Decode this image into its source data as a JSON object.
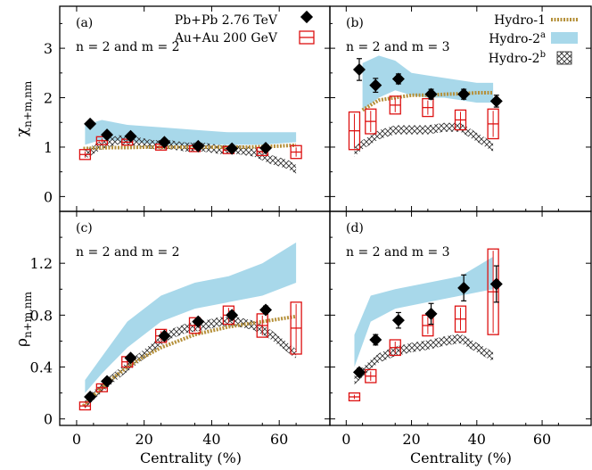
{
  "xlabel": "Centrality (%)",
  "legend": {
    "pbpb": "Pb+Pb 2.76 TeV",
    "auau": "Au+Au 200  GeV",
    "hydro1": "Hydro-1",
    "hydro2a_base": "Hydro-2",
    "hydro2a_sup": "a",
    "hydro2b_base": "Hydro-2",
    "hydro2b_sup": "b"
  },
  "row_labels": {
    "chi_base": "χ",
    "chi_sub": "n+m,nm",
    "rho_base": "ρ",
    "rho_sub": "n+m,nm"
  },
  "colors": {
    "pbpb": "#000000",
    "auau": "#dd1111",
    "hydro1": "#b5903a",
    "hydro2a": "#a8d8ea",
    "hydro2b": "#333333"
  },
  "chart_data": [
    {
      "type": "scatter",
      "panel": "a",
      "label": "(a)",
      "note": "n = 2 and m = 2",
      "xlim": [
        -5,
        75
      ],
      "ylim": [
        -0.3,
        3.85
      ],
      "xticks": [
        0,
        20,
        40,
        60
      ],
      "yticks": [
        0,
        1,
        2,
        3
      ],
      "xticklabels": [
        "",
        "",
        "",
        ""
      ],
      "yticklabels": [
        "0",
        "1",
        "2",
        "3"
      ],
      "pbpb": {
        "x": [
          4,
          9,
          16,
          26,
          36,
          46,
          56
        ],
        "y": [
          1.47,
          1.25,
          1.22,
          1.1,
          1.02,
          0.97,
          0.98
        ],
        "err": [
          0.04,
          0.04,
          0.04,
          0.04,
          0.04,
          0.05,
          0.06
        ]
      },
      "auau": {
        "x": [
          2.5,
          7.5,
          15,
          25,
          35,
          45,
          55,
          65
        ],
        "y": [
          0.85,
          1.13,
          1.1,
          1.0,
          0.97,
          0.94,
          0.91,
          0.9
        ],
        "box": [
          0.1,
          0.08,
          0.06,
          0.06,
          0.06,
          0.07,
          0.08,
          0.13
        ]
      },
      "hydro1": {
        "x": [
          2,
          5,
          10,
          15,
          20,
          25,
          30,
          35,
          40,
          45,
          50,
          55,
          60,
          65
        ],
        "y": [
          0.97,
          0.98,
          0.99,
          0.99,
          1.0,
          1.0,
          1.0,
          1.0,
          1.0,
          1.0,
          1.0,
          1.01,
          1.02,
          1.04
        ]
      },
      "hydro2a": {
        "x": [
          2.5,
          7.5,
          15,
          25,
          35,
          45,
          55,
          65
        ],
        "lo": [
          1.05,
          1.15,
          1.12,
          1.05,
          1.05,
          1.05,
          1.05,
          1.1
        ],
        "hi": [
          1.45,
          1.55,
          1.45,
          1.4,
          1.35,
          1.3,
          1.3,
          1.3
        ]
      },
      "hydro2b": {
        "x": [
          2.5,
          7.5,
          12.5,
          17.5,
          22.5,
          27.5,
          32.5,
          37.5,
          42.5,
          47.5,
          52.5,
          57.5,
          62.5,
          65
        ],
        "y": [
          0.85,
          1.05,
          1.15,
          1.12,
          1.05,
          1.05,
          1.0,
          1.0,
          0.95,
          0.95,
          0.9,
          0.75,
          0.65,
          0.55
        ]
      }
    },
    {
      "type": "scatter",
      "panel": "b",
      "label": "(b)",
      "note": "n = 2 and m = 3",
      "xlim": [
        -5,
        75
      ],
      "ylim": [
        -0.3,
        3.85
      ],
      "xticks": [
        0,
        20,
        40,
        60
      ],
      "yticks": [
        0,
        1,
        2,
        3
      ],
      "xticklabels": [
        "",
        "",
        "",
        ""
      ],
      "yticklabels": [
        "",
        "",
        "",
        ""
      ],
      "pbpb": {
        "x": [
          4,
          9,
          16,
          26,
          36,
          46
        ],
        "y": [
          2.57,
          2.25,
          2.38,
          2.07,
          2.07,
          1.93
        ],
        "err": [
          0.22,
          0.14,
          0.1,
          0.1,
          0.1,
          0.12
        ]
      },
      "auau": {
        "x": [
          2.5,
          7.5,
          15,
          25,
          35,
          45
        ],
        "y": [
          1.33,
          1.52,
          1.85,
          1.8,
          1.55,
          1.47
        ],
        "box": [
          0.38,
          0.25,
          0.18,
          0.18,
          0.2,
          0.3
        ]
      },
      "hydro1": {
        "x": [
          5,
          7.5,
          10,
          15,
          20,
          25,
          30,
          35,
          40,
          45
        ],
        "y": [
          1.75,
          1.85,
          1.95,
          2.0,
          2.05,
          2.05,
          2.07,
          2.08,
          2.1,
          2.1
        ]
      },
      "hydro2a": {
        "x": [
          5,
          10,
          15,
          20,
          25,
          30,
          35,
          40,
          45
        ],
        "lo": [
          1.75,
          2.0,
          2.15,
          2.05,
          2.0,
          2.0,
          1.95,
          1.9,
          1.9
        ],
        "hi": [
          2.7,
          2.85,
          2.75,
          2.5,
          2.45,
          2.4,
          2.35,
          2.3,
          2.3
        ]
      },
      "hydro2b": {
        "x": [
          2.5,
          5,
          7.5,
          10,
          12.5,
          15,
          20,
          25,
          30,
          35,
          40,
          45
        ],
        "y": [
          0.9,
          1.05,
          1.15,
          1.25,
          1.3,
          1.35,
          1.35,
          1.35,
          1.4,
          1.4,
          1.2,
          1.0
        ]
      }
    },
    {
      "type": "scatter",
      "panel": "c",
      "label": "(c)",
      "note": "n = 2 and m = 2",
      "xlim": [
        -5,
        75
      ],
      "ylim": [
        -0.05,
        1.6
      ],
      "xticks": [
        0,
        20,
        40,
        60
      ],
      "yticks": [
        0,
        0.4,
        0.8,
        1.2
      ],
      "xticklabels": [
        "0",
        "20",
        "40",
        "60"
      ],
      "yticklabels": [
        "0",
        "0.4",
        "0.8",
        "1.2"
      ],
      "pbpb": {
        "x": [
          4,
          9,
          16,
          26,
          36,
          46,
          56
        ],
        "y": [
          0.17,
          0.29,
          0.47,
          0.64,
          0.75,
          0.8,
          0.84
        ],
        "err": [
          0.02,
          0.02,
          0.02,
          0.02,
          0.02,
          0.03,
          0.03
        ]
      },
      "auau": {
        "x": [
          2.5,
          7.5,
          15,
          25,
          35,
          45,
          55,
          65
        ],
        "y": [
          0.1,
          0.24,
          0.44,
          0.64,
          0.72,
          0.8,
          0.72,
          0.7
        ],
        "box": [
          0.03,
          0.03,
          0.04,
          0.05,
          0.06,
          0.07,
          0.09,
          0.2
        ]
      },
      "hydro1": {
        "x": [
          2,
          5,
          10,
          15,
          20,
          25,
          30,
          35,
          40,
          45,
          50,
          55,
          60,
          65
        ],
        "y": [
          0.1,
          0.18,
          0.3,
          0.4,
          0.48,
          0.55,
          0.6,
          0.65,
          0.68,
          0.71,
          0.73,
          0.75,
          0.77,
          0.79
        ]
      },
      "hydro2a": {
        "x": [
          2.5,
          7.5,
          15,
          25,
          35,
          45,
          55,
          65
        ],
        "lo": [
          0.2,
          0.35,
          0.55,
          0.75,
          0.85,
          0.9,
          0.95,
          1.05
        ],
        "hi": [
          0.3,
          0.48,
          0.75,
          0.95,
          1.05,
          1.1,
          1.2,
          1.36
        ]
      },
      "hydro2b": {
        "x": [
          2.5,
          5,
          7.5,
          12.5,
          17.5,
          22.5,
          27.5,
          32.5,
          37.5,
          42.5,
          47.5,
          52.5,
          57.5,
          62.5,
          65
        ],
        "y": [
          0.12,
          0.18,
          0.24,
          0.35,
          0.45,
          0.55,
          0.65,
          0.7,
          0.72,
          0.75,
          0.75,
          0.72,
          0.65,
          0.55,
          0.5
        ]
      }
    },
    {
      "type": "scatter",
      "panel": "d",
      "label": "(d)",
      "note": "n = 2 and m = 3",
      "xlim": [
        -5,
        75
      ],
      "ylim": [
        -0.05,
        1.6
      ],
      "xticks": [
        0,
        20,
        40,
        60
      ],
      "yticks": [
        0,
        0.4,
        0.8,
        1.2
      ],
      "xticklabels": [
        "0",
        "20",
        "40",
        "60"
      ],
      "yticklabels": [
        "",
        "",
        "",
        ""
      ],
      "pbpb": {
        "x": [
          4,
          9,
          16,
          26,
          36,
          46
        ],
        "y": [
          0.36,
          0.61,
          0.76,
          0.81,
          1.01,
          1.04
        ],
        "err": [
          0.03,
          0.04,
          0.06,
          0.08,
          0.1,
          0.14
        ]
      },
      "auau": {
        "x": [
          2.5,
          7.5,
          15,
          25,
          35,
          45
        ],
        "y": [
          0.17,
          0.33,
          0.55,
          0.72,
          0.77,
          0.98
        ],
        "box": [
          0.03,
          0.05,
          0.06,
          0.08,
          0.1,
          0.33
        ]
      },
      "hydro1": {
        "x": [],
        "y": []
      },
      "hydro2a": {
        "x": [
          2.5,
          7.5,
          15,
          25,
          35,
          45
        ],
        "lo": [
          0.4,
          0.75,
          0.85,
          0.9,
          0.95,
          1.0
        ],
        "hi": [
          0.65,
          0.95,
          1.0,
          1.05,
          1.1,
          1.25
        ]
      },
      "hydro2b": {
        "x": [
          2.5,
          5,
          7.5,
          10,
          15,
          20,
          25,
          30,
          35,
          40,
          45
        ],
        "y": [
          0.3,
          0.36,
          0.42,
          0.47,
          0.52,
          0.55,
          0.57,
          0.6,
          0.62,
          0.55,
          0.48
        ]
      }
    }
  ]
}
